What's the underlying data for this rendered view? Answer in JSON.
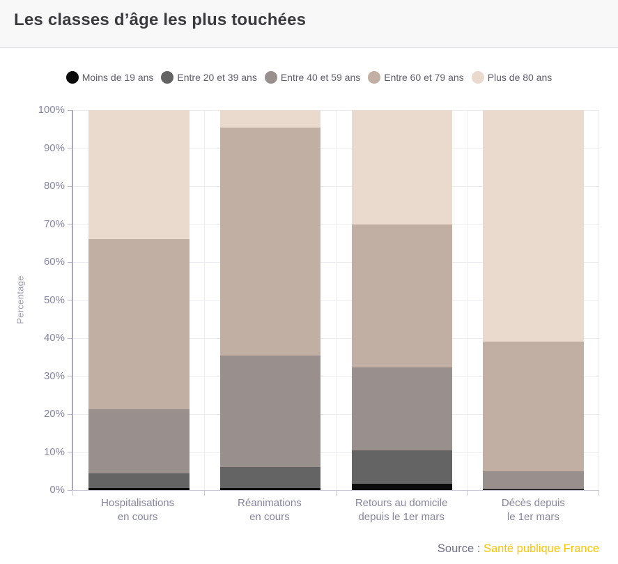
{
  "header": {
    "title": "Les classes d’âge les plus touchées"
  },
  "chart_data": {
    "type": "bar",
    "stacked": true,
    "title": "Les classes d’âge les plus touchées",
    "ylabel": "Percentage",
    "xlabel": "",
    "ylim": [
      0,
      100
    ],
    "ytick_step": 10,
    "ytick_suffix": "%",
    "grid": true,
    "legend_position": "top",
    "categories": [
      [
        "Hospitalisations",
        "en cours"
      ],
      [
        "Réanimations",
        "en cours"
      ],
      [
        "Retours au domicile",
        "depuis le 1er mars"
      ],
      [
        "Décès depuis",
        "le 1er mars"
      ]
    ],
    "series": [
      {
        "name": "Moins de 19 ans",
        "color": "#0b0b0b",
        "values": [
          0.5,
          0.5,
          1.7,
          0.1
        ]
      },
      {
        "name": "Entre 20 et 39 ans",
        "color": "#646464",
        "values": [
          3.9,
          5.5,
          8.7,
          0.3
        ]
      },
      {
        "name": "Entre 40 et 59 ans",
        "color": "#99908d",
        "values": [
          16.8,
          29.4,
          21.9,
          4.6
        ]
      },
      {
        "name": "Entre 60 et 79 ans",
        "color": "#c2afa3",
        "values": [
          44.9,
          60.1,
          37.7,
          34.0
        ]
      },
      {
        "name": "Plus de 80 ans",
        "color": "#e9dacd",
        "values": [
          33.9,
          4.5,
          30.0,
          61.0
        ]
      }
    ],
    "stack_tops_percent": {
      "Hospitalisations en cours": [
        0.5,
        4.4,
        21.2,
        66.1,
        100
      ],
      "Réanimations en cours": [
        0.5,
        6.0,
        35.4,
        95.5,
        100
      ],
      "Retours au domicile depuis le 1er mars": [
        1.7,
        10.4,
        32.3,
        70.0,
        100
      ],
      "Décès depuis le 1er mars": [
        0.1,
        0.4,
        5.0,
        39.0,
        100
      ]
    }
  },
  "colors": {
    "header_bg": "#f8f8f9",
    "header_border": "#dadae2",
    "grid": "#ededf1",
    "y_axis_line": "#a9a9bd",
    "x_axis_line": "#c9c9d5",
    "tick_text": "#8585a0",
    "legend_text": "#5c5c6b",
    "title_text": "#3a3a3e",
    "source_text": "#6e6e86",
    "link": "#fec400"
  },
  "source": {
    "prefix": "Source :",
    "link_text": "Santé publique France"
  }
}
